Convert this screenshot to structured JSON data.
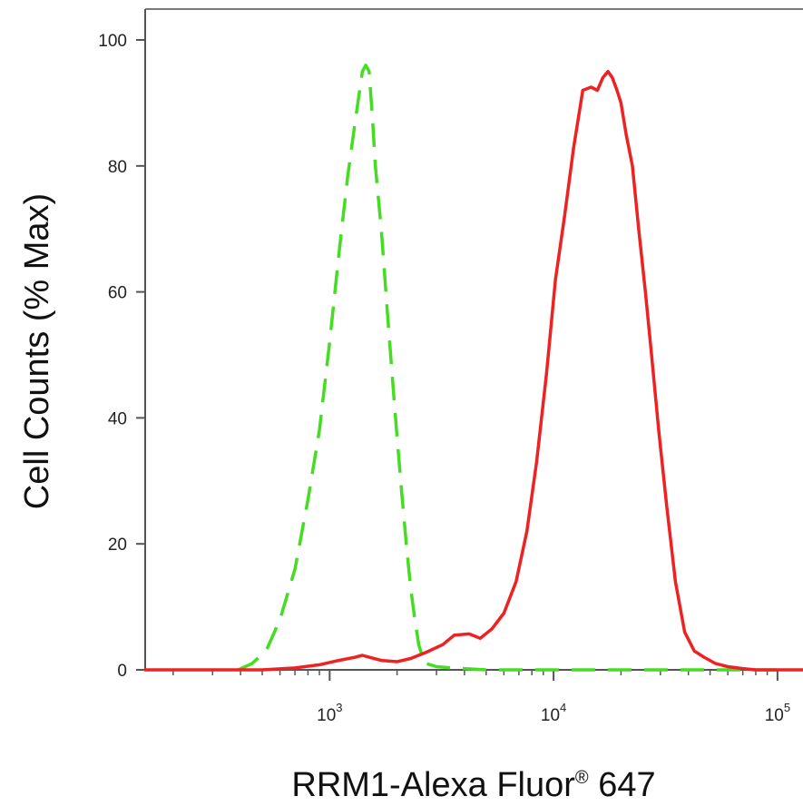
{
  "chart_data": {
    "type": "line",
    "title": "",
    "xlabel": "RRM1-Alexa Fluor",
    "xlabel_mark": "®",
    "xlabel_suffix": " 647",
    "ylabel": "Cell Counts (% Max)",
    "xscale": "log",
    "xlim": [
      150,
      130000
    ],
    "ylim": [
      0,
      105
    ],
    "yticks": [
      {
        "value": 0,
        "label": "0"
      },
      {
        "value": 20,
        "label": "20"
      },
      {
        "value": 40,
        "label": "40"
      },
      {
        "value": 60,
        "label": "60"
      },
      {
        "value": 80,
        "label": "80"
      },
      {
        "value": 100,
        "label": "100"
      }
    ],
    "xticks": [
      {
        "value": 1000,
        "base": "10",
        "exp": "3"
      },
      {
        "value": 10000,
        "base": "10",
        "exp": "4"
      },
      {
        "value": 100000,
        "base": "10",
        "exp": "5"
      }
    ],
    "grid": false,
    "series": [
      {
        "color": "#44dd22",
        "dash": "dashed",
        "x": [
          390,
          450,
          520,
          600,
          700,
          800,
          900,
          1000,
          1100,
          1200,
          1300,
          1400,
          1450,
          1500,
          1550,
          1600,
          1700,
          1800,
          1900,
          2000,
          2100,
          2200,
          2300,
          2400,
          2500,
          2600,
          2700,
          3000,
          3500,
          4000,
          5000,
          10000,
          20000,
          50000,
          100000
        ],
        "y": [
          0,
          1,
          3,
          8,
          16,
          27,
          38,
          52,
          66,
          78,
          87,
          95,
          96,
          95,
          88,
          80,
          70,
          58,
          47,
          37,
          28,
          20,
          13,
          8,
          4,
          2,
          1,
          0.5,
          0.3,
          0.2,
          0,
          0,
          0,
          0,
          0
        ]
      },
      {
        "color": "#ee2222",
        "dash": "solid",
        "x": [
          150,
          300,
          500,
          700,
          900,
          1100,
          1300,
          1400,
          1500,
          1700,
          2000,
          2300,
          2700,
          3200,
          3600,
          4200,
          4700,
          5300,
          6000,
          6800,
          7600,
          8400,
          9300,
          10200,
          11200,
          12300,
          13500,
          14700,
          15700,
          16600,
          17500,
          18300,
          19200,
          20000,
          21100,
          22500,
          24000,
          25700,
          27400,
          29500,
          32000,
          35000,
          38500,
          42500,
          47000,
          53000,
          60000,
          70000,
          80000,
          100000,
          130000
        ],
        "y": [
          0,
          0,
          0,
          0.3,
          0.8,
          1.5,
          2.0,
          2.3,
          2.0,
          1.5,
          1.3,
          1.8,
          2.8,
          4.0,
          5.5,
          5.7,
          5.0,
          6.5,
          9.0,
          14.0,
          22.0,
          33.0,
          47.0,
          62.0,
          72.0,
          83.0,
          92.0,
          92.5,
          92.0,
          94.0,
          95.0,
          94.0,
          92.0,
          90.0,
          85.0,
          80.0,
          70.0,
          60.0,
          50.0,
          38.0,
          26.0,
          14.0,
          6.0,
          3.0,
          2.0,
          1.0,
          0.5,
          0.2,
          0,
          0,
          0
        ]
      }
    ]
  }
}
